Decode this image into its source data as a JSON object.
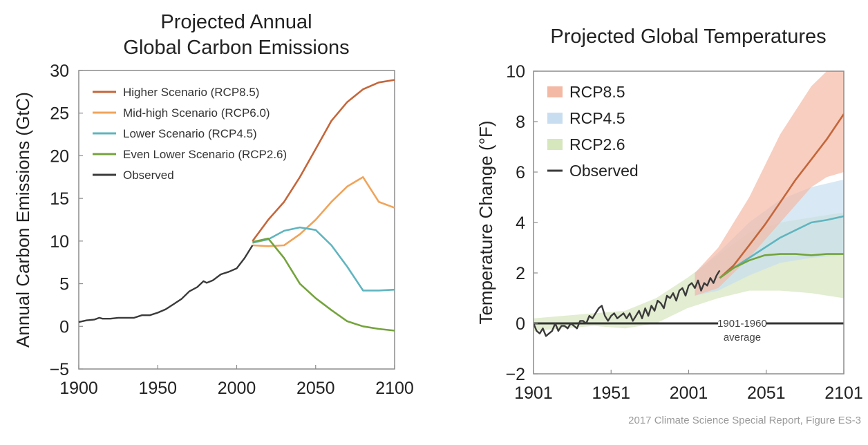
{
  "caption": "2017 Climate Science Special Report, Figure ES-3",
  "colors": {
    "rcp85": "#c4663a",
    "rcp60": "#f0a45a",
    "rcp45": "#5fb5bf",
    "rcp26": "#74a33c",
    "observed": "#3a3a3a",
    "rcp85_band": "#f3b9a5",
    "rcp45_band": "#c8def0",
    "rcp26_band": "#d6e6bd"
  },
  "chart_data": [
    {
      "type": "line",
      "title_lines": [
        "Projected Annual",
        "Global Carbon Emissions"
      ],
      "xlabel": "",
      "ylabel": "Annual Carbon Emissions (GtC)",
      "xlim": [
        1900,
        2100
      ],
      "ylim": [
        -5,
        30
      ],
      "xticks": [
        1900,
        1950,
        2000,
        2050,
        2100
      ],
      "yticks": [
        -5,
        0,
        5,
        10,
        15,
        20,
        25,
        30
      ],
      "grid": false,
      "legend_position": "top-left",
      "series": [
        {
          "name": "Higher Scenario (RCP8.5)",
          "color_key": "rcp85",
          "x": [
            2010,
            2020,
            2030,
            2040,
            2050,
            2060,
            2070,
            2080,
            2090,
            2100
          ],
          "y": [
            10.0,
            12.5,
            14.6,
            17.5,
            20.8,
            24.1,
            26.3,
            27.8,
            28.6,
            28.9
          ]
        },
        {
          "name": "Mid-high Scenario (RCP6.0)",
          "color_key": "rcp60",
          "x": [
            2010,
            2020,
            2030,
            2040,
            2050,
            2060,
            2070,
            2080,
            2090,
            2100
          ],
          "y": [
            9.5,
            9.4,
            9.5,
            10.8,
            12.5,
            14.6,
            16.4,
            17.5,
            14.6,
            13.9
          ]
        },
        {
          "name": "Lower Scenario (RCP4.5)",
          "color_key": "rcp45",
          "x": [
            2010,
            2020,
            2030,
            2040,
            2050,
            2060,
            2070,
            2080,
            2090,
            2100
          ],
          "y": [
            9.8,
            10.2,
            11.2,
            11.6,
            11.3,
            9.5,
            7.0,
            4.2,
            4.2,
            4.3
          ]
        },
        {
          "name": "Even Lower Scenario (RCP2.6)",
          "color_key": "rcp26",
          "x": [
            2010,
            2020,
            2030,
            2040,
            2050,
            2060,
            2070,
            2080,
            2090,
            2100
          ],
          "y": [
            9.9,
            10.3,
            8.0,
            5.0,
            3.3,
            1.9,
            0.6,
            0.0,
            -0.3,
            -0.5
          ]
        },
        {
          "name": "Observed",
          "color_key": "observed",
          "x": [
            1900,
            1905,
            1910,
            1913,
            1915,
            1920,
            1925,
            1930,
            1935,
            1940,
            1945,
            1950,
            1955,
            1960,
            1965,
            1970,
            1975,
            1979,
            1981,
            1985,
            1990,
            1995,
            2000,
            2005,
            2010
          ],
          "y": [
            0.5,
            0.7,
            0.8,
            1.0,
            0.9,
            0.9,
            1.0,
            1.0,
            1.0,
            1.3,
            1.3,
            1.6,
            2.0,
            2.6,
            3.2,
            4.1,
            4.6,
            5.3,
            5.1,
            5.4,
            6.1,
            6.4,
            6.8,
            8.0,
            9.5
          ]
        }
      ]
    },
    {
      "type": "area",
      "title": "Projected Global Temperatures",
      "xlabel": "",
      "ylabel": "Temperature Change (°F)",
      "xlim": [
        1901,
        2101
      ],
      "ylim": [
        -2,
        10
      ],
      "xticks": [
        1901,
        1951,
        2001,
        2051,
        2101
      ],
      "yticks": [
        -2,
        0,
        2,
        4,
        6,
        8,
        10
      ],
      "grid": false,
      "legend_position": "top-left",
      "legend": [
        {
          "label": "RCP8.5",
          "kind": "band",
          "color_key": "rcp85_band"
        },
        {
          "label": "RCP4.5",
          "kind": "band",
          "color_key": "rcp45_band"
        },
        {
          "label": "RCP2.6",
          "kind": "band",
          "color_key": "rcp26_band"
        },
        {
          "label": "Observed",
          "kind": "line",
          "color_key": "observed"
        }
      ],
      "baseline": {
        "y": 0,
        "label_lines": [
          "1901-1960",
          "average"
        ]
      },
      "bands": [
        {
          "name": "RCP2.6",
          "color_key": "rcp26_band",
          "x": [
            1901,
            1920,
            1940,
            1960,
            1980,
            2000,
            2020,
            2040,
            2060,
            2080,
            2101
          ],
          "lower": [
            -0.3,
            -0.2,
            -0.1,
            -0.2,
            0.0,
            0.6,
            1.0,
            1.3,
            1.3,
            1.2,
            1.0
          ],
          "upper": [
            0.2,
            0.3,
            0.4,
            0.5,
            1.0,
            1.8,
            2.7,
            3.6,
            4.0,
            4.2,
            4.4
          ]
        },
        {
          "name": "RCP4.5",
          "color_key": "rcp45_band",
          "x": [
            2005,
            2020,
            2040,
            2060,
            2080,
            2101
          ],
          "lower": [
            1.1,
            1.3,
            1.9,
            2.4,
            2.6,
            2.7
          ],
          "upper": [
            2.0,
            2.8,
            4.0,
            4.9,
            5.4,
            5.7
          ]
        },
        {
          "name": "RCP8.5",
          "color_key": "rcp85_band",
          "x": [
            2005,
            2020,
            2040,
            2060,
            2080,
            2090,
            2101
          ],
          "lower": [
            1.1,
            1.4,
            2.6,
            4.0,
            5.4,
            5.8,
            6.0
          ],
          "upper": [
            2.0,
            3.0,
            5.0,
            7.5,
            9.4,
            10.0,
            10.0
          ]
        }
      ],
      "series": [
        {
          "name": "RCP8.5",
          "color_key": "rcp85",
          "x": [
            2021,
            2030,
            2040,
            2050,
            2060,
            2070,
            2080,
            2090,
            2101
          ],
          "y": [
            1.8,
            2.3,
            3.1,
            3.9,
            4.8,
            5.7,
            6.5,
            7.3,
            8.3
          ]
        },
        {
          "name": "RCP4.5",
          "color_key": "rcp45",
          "x": [
            2021,
            2030,
            2040,
            2050,
            2060,
            2070,
            2080,
            2090,
            2101
          ],
          "y": [
            1.8,
            2.2,
            2.6,
            3.0,
            3.4,
            3.7,
            4.0,
            4.1,
            4.25
          ]
        },
        {
          "name": "RCP2.6",
          "color_key": "rcp26",
          "x": [
            2021,
            2030,
            2040,
            2050,
            2060,
            2070,
            2080,
            2090,
            2101
          ],
          "y": [
            1.8,
            2.2,
            2.5,
            2.7,
            2.75,
            2.75,
            2.7,
            2.75,
            2.75
          ]
        },
        {
          "name": "Observed",
          "color_key": "observed",
          "x": [
            1901,
            1903,
            1905,
            1907,
            1909,
            1911,
            1913,
            1915,
            1917,
            1919,
            1921,
            1923,
            1925,
            1927,
            1929,
            1931,
            1933,
            1935,
            1937,
            1939,
            1941,
            1943,
            1945,
            1947,
            1949,
            1951,
            1953,
            1955,
            1957,
            1959,
            1961,
            1963,
            1965,
            1967,
            1969,
            1971,
            1973,
            1975,
            1977,
            1979,
            1981,
            1983,
            1985,
            1987,
            1989,
            1991,
            1993,
            1995,
            1997,
            1999,
            2001,
            2003,
            2005,
            2007,
            2009,
            2011,
            2013,
            2015,
            2017,
            2019,
            2021
          ],
          "y": [
            0.0,
            -0.3,
            -0.4,
            -0.2,
            -0.5,
            -0.4,
            -0.3,
            0.0,
            -0.3,
            -0.1,
            -0.1,
            -0.2,
            0.0,
            -0.1,
            -0.2,
            0.1,
            0.1,
            0.0,
            0.3,
            0.2,
            0.4,
            0.6,
            0.7,
            0.3,
            0.1,
            0.3,
            0.4,
            0.2,
            0.3,
            0.4,
            0.2,
            0.4,
            0.1,
            0.3,
            0.5,
            0.2,
            0.6,
            0.3,
            0.7,
            0.5,
            0.9,
            0.8,
            0.6,
            1.1,
            1.0,
            1.2,
            0.9,
            1.3,
            1.4,
            1.1,
            1.5,
            1.6,
            1.4,
            1.7,
            1.3,
            1.6,
            1.5,
            1.8,
            1.6,
            1.9,
            2.1
          ]
        }
      ]
    }
  ]
}
